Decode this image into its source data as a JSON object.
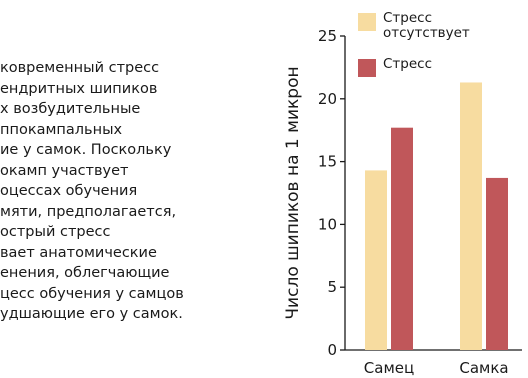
{
  "passage": {
    "lines": [
      "ковременный стресс",
      "ендритных шипиков",
      "х возбудительные",
      "ппокампальных",
      "ие у самок. Поскольку",
      "окамп участвует",
      "оцессах обучения",
      "мяти, предполагается,",
      "острый стресс",
      "вает анатомические",
      "енения, облегчающие",
      "цесс обучения у самцов",
      "удшающие его у самок."
    ]
  },
  "chart_data": {
    "type": "bar",
    "categories": [
      "Самец",
      "Самка"
    ],
    "series": [
      {
        "name": "Стресс отсутствует",
        "legend_lines": [
          "Стресс",
          "отсутствует"
        ],
        "color": "#f7dca0",
        "values": [
          14.3,
          21.3
        ]
      },
      {
        "name": "Стресс",
        "legend_lines": [
          "Стресс"
        ],
        "color": "#c0575a",
        "values": [
          17.7,
          13.7
        ]
      }
    ],
    "ylabel": "Число шипиков на 1 микрон",
    "ylim": [
      0,
      25
    ],
    "yticks": [
      0,
      5,
      10,
      15,
      20,
      25
    ],
    "grid": false,
    "legend": "top-right"
  }
}
